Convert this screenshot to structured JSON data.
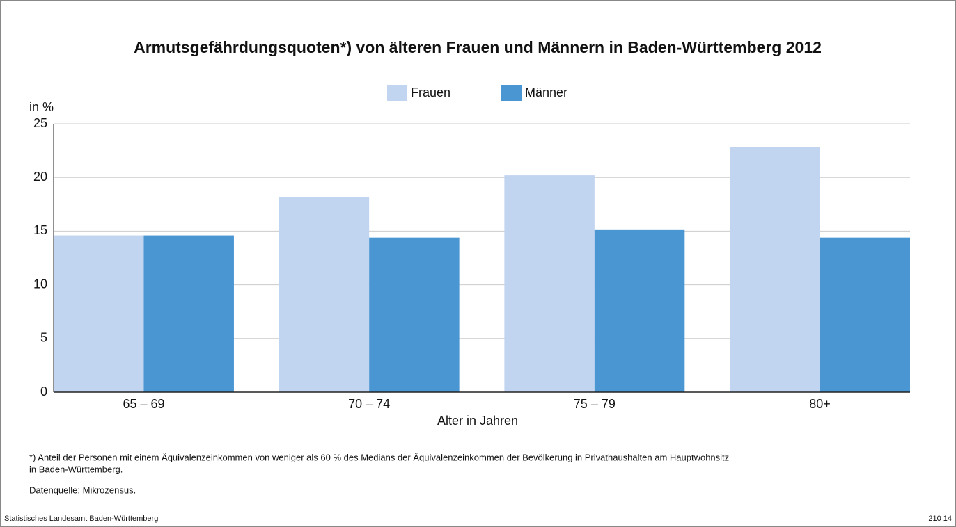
{
  "chart_data": {
    "type": "bar",
    "title": "Armutsgefährdungsquoten*) von älteren Frauen und Männern in Baden-Württemberg 2012",
    "y_label": "in %",
    "x_label": "Alter in Jahren",
    "categories": [
      "65 – 69",
      "70 – 74",
      "75 – 79",
      "80+"
    ],
    "series": [
      {
        "name": "Frauen",
        "color": "#c1d4f0",
        "values": [
          14.6,
          18.2,
          20.2,
          22.8
        ]
      },
      {
        "name": "Männer",
        "color": "#4a96d3",
        "values": [
          14.6,
          14.4,
          15.1,
          14.4
        ]
      }
    ],
    "ylim": [
      0,
      25
    ],
    "yticks": [
      0,
      5,
      10,
      15,
      20,
      25
    ],
    "grid": true,
    "legend": "top",
    "footnote": [
      "*) Anteil der Personen mit einem Äquivalenzeinkommen von weniger als 60 % des Medians der Äquivalenzeinkommen der Bevölkerung in Privathaushalten am Hauptwohnsitz",
      "in Baden-Württemberg."
    ],
    "source": "Datenquelle: Mikrozensus.",
    "publisher": "Statistisches Landesamt Baden-Württemberg",
    "code": "210 14"
  }
}
